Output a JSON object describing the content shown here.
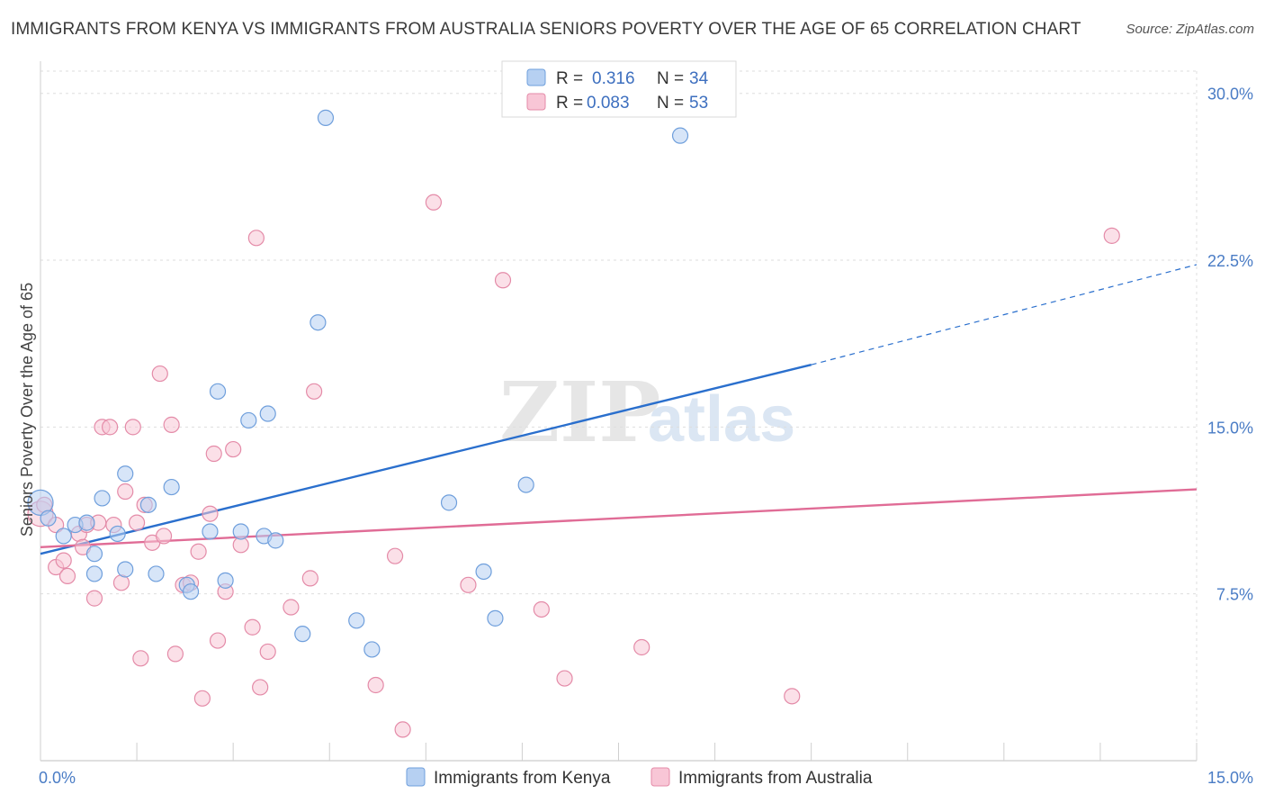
{
  "header": {
    "title": "IMMIGRANTS FROM KENYA VS IMMIGRANTS FROM AUSTRALIA SENIORS POVERTY OVER THE AGE OF 65 CORRELATION CHART",
    "source": "Source: ZipAtlas.com"
  },
  "watermark": {
    "zip": "ZIP",
    "atlas": "atlas"
  },
  "legend_box": {
    "rows": [
      {
        "r_label": "R =",
        "r_value": "0.316",
        "n_label": "N =",
        "n_value": "34"
      },
      {
        "r_label": "R =",
        "r_value": "0.083",
        "n_label": "N =",
        "n_value": "53"
      }
    ]
  },
  "colors": {
    "kenya_fill": "#b6d0f2",
    "kenya_stroke": "#6f9fdc",
    "kenya_line": "#2a6fcd",
    "australia_fill": "#f8c6d6",
    "australia_stroke": "#e48ba8",
    "australia_line": "#e06c96",
    "grid": "#dddddd",
    "axis_text": "#4a7cc5"
  },
  "chart_data": {
    "type": "scatter",
    "title": "IMMIGRANTS FROM KENYA VS IMMIGRANTS FROM AUSTRALIA SENIORS POVERTY OVER THE AGE OF 65 CORRELATION CHART",
    "xlabel": "",
    "ylabel": "Seniors Poverty Over the Age of 65",
    "xlim": [
      0,
      15
    ],
    "ylim": [
      0,
      31
    ],
    "x_tick_labels": [
      "0.0%",
      "15.0%"
    ],
    "y_ticks": [
      7.5,
      15.0,
      22.5,
      30.0
    ],
    "y_tick_labels": [
      "7.5%",
      "15.0%",
      "22.5%",
      "30.0%"
    ],
    "legend_position": "top-center",
    "series": [
      {
        "name": "Immigrants from Kenya",
        "R": 0.316,
        "N": 34,
        "trend": {
          "x0": 0.0,
          "y0": 9.3,
          "x1": 10.0,
          "y1": 17.8,
          "dashed_to_x": 15.0,
          "dashed_to_y": 22.3
        },
        "points": [
          [
            0.0,
            11.6
          ],
          [
            0.1,
            10.9
          ],
          [
            0.3,
            10.1
          ],
          [
            0.45,
            10.6
          ],
          [
            0.6,
            10.7
          ],
          [
            0.7,
            9.3
          ],
          [
            0.8,
            11.8
          ],
          [
            0.7,
            8.4
          ],
          [
            1.0,
            10.2
          ],
          [
            1.1,
            12.9
          ],
          [
            1.1,
            8.6
          ],
          [
            1.4,
            11.5
          ],
          [
            1.5,
            8.4
          ],
          [
            1.7,
            12.3
          ],
          [
            1.9,
            7.9
          ],
          [
            1.95,
            7.6
          ],
          [
            2.2,
            10.3
          ],
          [
            2.3,
            16.6
          ],
          [
            2.4,
            8.1
          ],
          [
            2.6,
            10.3
          ],
          [
            2.7,
            15.3
          ],
          [
            2.9,
            10.1
          ],
          [
            2.95,
            15.6
          ],
          [
            3.05,
            9.9
          ],
          [
            3.4,
            5.7
          ],
          [
            3.6,
            19.7
          ],
          [
            3.7,
            28.9
          ],
          [
            4.1,
            6.3
          ],
          [
            4.3,
            5.0
          ],
          [
            5.3,
            11.6
          ],
          [
            5.75,
            8.5
          ],
          [
            5.9,
            6.4
          ],
          [
            6.3,
            12.4
          ],
          [
            8.3,
            28.1
          ]
        ]
      },
      {
        "name": "Immigrants from Australia",
        "R": 0.083,
        "N": 53,
        "trend": {
          "x0": 0.0,
          "y0": 9.6,
          "x1": 15.0,
          "y1": 12.2
        },
        "points": [
          [
            0.0,
            11.1
          ],
          [
            0.05,
            11.5
          ],
          [
            0.2,
            10.6
          ],
          [
            0.2,
            8.7
          ],
          [
            0.3,
            9.0
          ],
          [
            0.35,
            8.3
          ],
          [
            0.5,
            10.2
          ],
          [
            0.55,
            9.6
          ],
          [
            0.6,
            10.6
          ],
          [
            0.7,
            7.3
          ],
          [
            0.75,
            10.7
          ],
          [
            0.8,
            15.0
          ],
          [
            0.9,
            15.0
          ],
          [
            0.95,
            10.6
          ],
          [
            1.05,
            8.0
          ],
          [
            1.1,
            12.1
          ],
          [
            1.2,
            15.0
          ],
          [
            1.25,
            10.7
          ],
          [
            1.3,
            4.6
          ],
          [
            1.35,
            11.5
          ],
          [
            1.45,
            9.8
          ],
          [
            1.55,
            17.4
          ],
          [
            1.6,
            10.1
          ],
          [
            1.7,
            15.1
          ],
          [
            1.75,
            4.8
          ],
          [
            1.85,
            7.9
          ],
          [
            1.95,
            8.0
          ],
          [
            2.05,
            9.4
          ],
          [
            2.1,
            2.8
          ],
          [
            2.2,
            11.1
          ],
          [
            2.25,
            13.8
          ],
          [
            2.3,
            5.4
          ],
          [
            2.4,
            7.6
          ],
          [
            2.5,
            14.0
          ],
          [
            2.6,
            9.7
          ],
          [
            2.75,
            6.0
          ],
          [
            2.8,
            23.5
          ],
          [
            2.85,
            3.3
          ],
          [
            2.95,
            4.9
          ],
          [
            3.25,
            6.9
          ],
          [
            3.5,
            8.2
          ],
          [
            3.55,
            16.6
          ],
          [
            4.35,
            3.4
          ],
          [
            4.6,
            9.2
          ],
          [
            4.7,
            1.4
          ],
          [
            5.1,
            25.1
          ],
          [
            5.55,
            7.9
          ],
          [
            6.0,
            21.6
          ],
          [
            6.5,
            6.8
          ],
          [
            6.8,
            3.7
          ],
          [
            7.8,
            5.1
          ],
          [
            9.75,
            2.9
          ],
          [
            13.9,
            23.6
          ]
        ]
      }
    ]
  }
}
